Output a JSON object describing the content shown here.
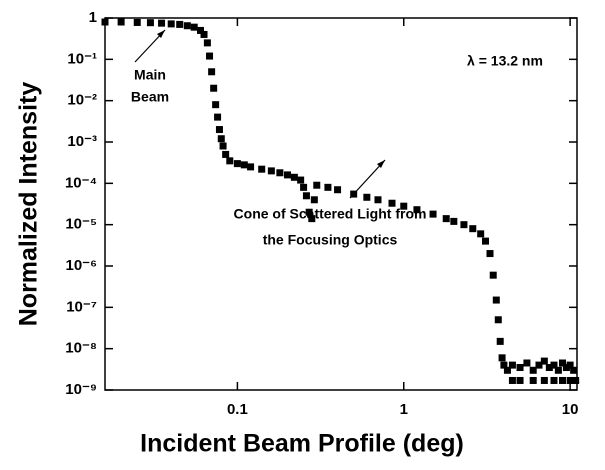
{
  "chart_data": {
    "type": "scatter",
    "xlabel": "Incident Beam Profile (deg)",
    "ylabel": "Normalized Intensity",
    "log_x": true,
    "log_y": true,
    "xlim": [
      0.016,
      11
    ],
    "ylim": [
      1e-09,
      1
    ],
    "xticks": [
      0.1,
      1,
      10
    ],
    "yticks": [
      {
        "value": 1e-09,
        "label": "10⁻⁹"
      },
      {
        "value": 1e-08,
        "label": "10⁻⁸"
      },
      {
        "value": 1e-07,
        "label": "10⁻⁷"
      },
      {
        "value": 1e-06,
        "label": "10⁻⁶"
      },
      {
        "value": 1e-05,
        "label": "10⁻⁵"
      },
      {
        "value": 0.0001,
        "label": "10⁻⁴"
      },
      {
        "value": 0.001,
        "label": "10⁻³"
      },
      {
        "value": 0.01,
        "label": "10⁻²"
      },
      {
        "value": 0.1,
        "label": "10⁻¹"
      },
      1
    ],
    "color": "#000000",
    "x": [
      0.016,
      0.02,
      0.025,
      0.03,
      0.035,
      0.04,
      0.045,
      0.05,
      0.055,
      0.06,
      0.063,
      0.066,
      0.068,
      0.07,
      0.072,
      0.074,
      0.076,
      0.078,
      0.08,
      0.082,
      0.085,
      0.09,
      0.1,
      0.11,
      0.12,
      0.14,
      0.16,
      0.18,
      0.2,
      0.22,
      0.24,
      0.25,
      0.26,
      0.27,
      0.28,
      0.29,
      0.3,
      0.35,
      0.4,
      0.5,
      0.6,
      0.7,
      0.85,
      1,
      1.2,
      1.5,
      1.8,
      2,
      2.3,
      2.6,
      2.9,
      3.1,
      3.3,
      3.45,
      3.6,
      3.7,
      3.8,
      3.9,
      4.0,
      4.2,
      4.5,
      5,
      5.5,
      6,
      6.5,
      7,
      7.5,
      8,
      8.5,
      9,
      9.5,
      10,
      10.5,
      4.5,
      5,
      6,
      7,
      8,
      9,
      10,
      10.8
    ],
    "values": [
      0.8,
      0.8,
      0.78,
      0.77,
      0.75,
      0.72,
      0.7,
      0.65,
      0.6,
      0.5,
      0.4,
      0.25,
      0.12,
      0.05,
      0.02,
      0.008,
      0.004,
      0.002,
      0.0012,
      0.0008,
      0.0005,
      0.00035,
      0.0003,
      0.00028,
      0.00025,
      0.00022,
      0.0002,
      0.00018,
      0.00016,
      0.00014,
      0.00012,
      8e-05,
      5e-05,
      2e-05,
      1.4e-05,
      4e-05,
      9e-05,
      8e-05,
      7e-05,
      5.5e-05,
      4.6e-05,
      4e-05,
      3.3e-05,
      2.8e-05,
      2.3e-05,
      1.8e-05,
      1.4e-05,
      1.2e-05,
      1e-05,
      8e-06,
      6e-06,
      4e-06,
      2e-06,
      6e-07,
      1.5e-07,
      5e-08,
      1.5e-08,
      6e-09,
      4e-09,
      3e-09,
      4e-09,
      3.5e-09,
      4.5e-09,
      3e-09,
      4e-09,
      5e-09,
      3.5e-09,
      4e-09,
      3e-09,
      4.5e-09,
      3.5e-09,
      4e-09,
      3e-09,
      1.7e-09,
      1.7e-09,
      1.7e-09,
      1.7e-09,
      1.7e-09,
      1.7e-09,
      1.7e-09,
      1.7e-09
    ],
    "annotations": [
      [
        "Main",
        "Beam"
      ],
      [
        "λ = 13.2 nm"
      ],
      [
        "Cone of Scattered Light from",
        "the Focusing Optics"
      ]
    ]
  }
}
